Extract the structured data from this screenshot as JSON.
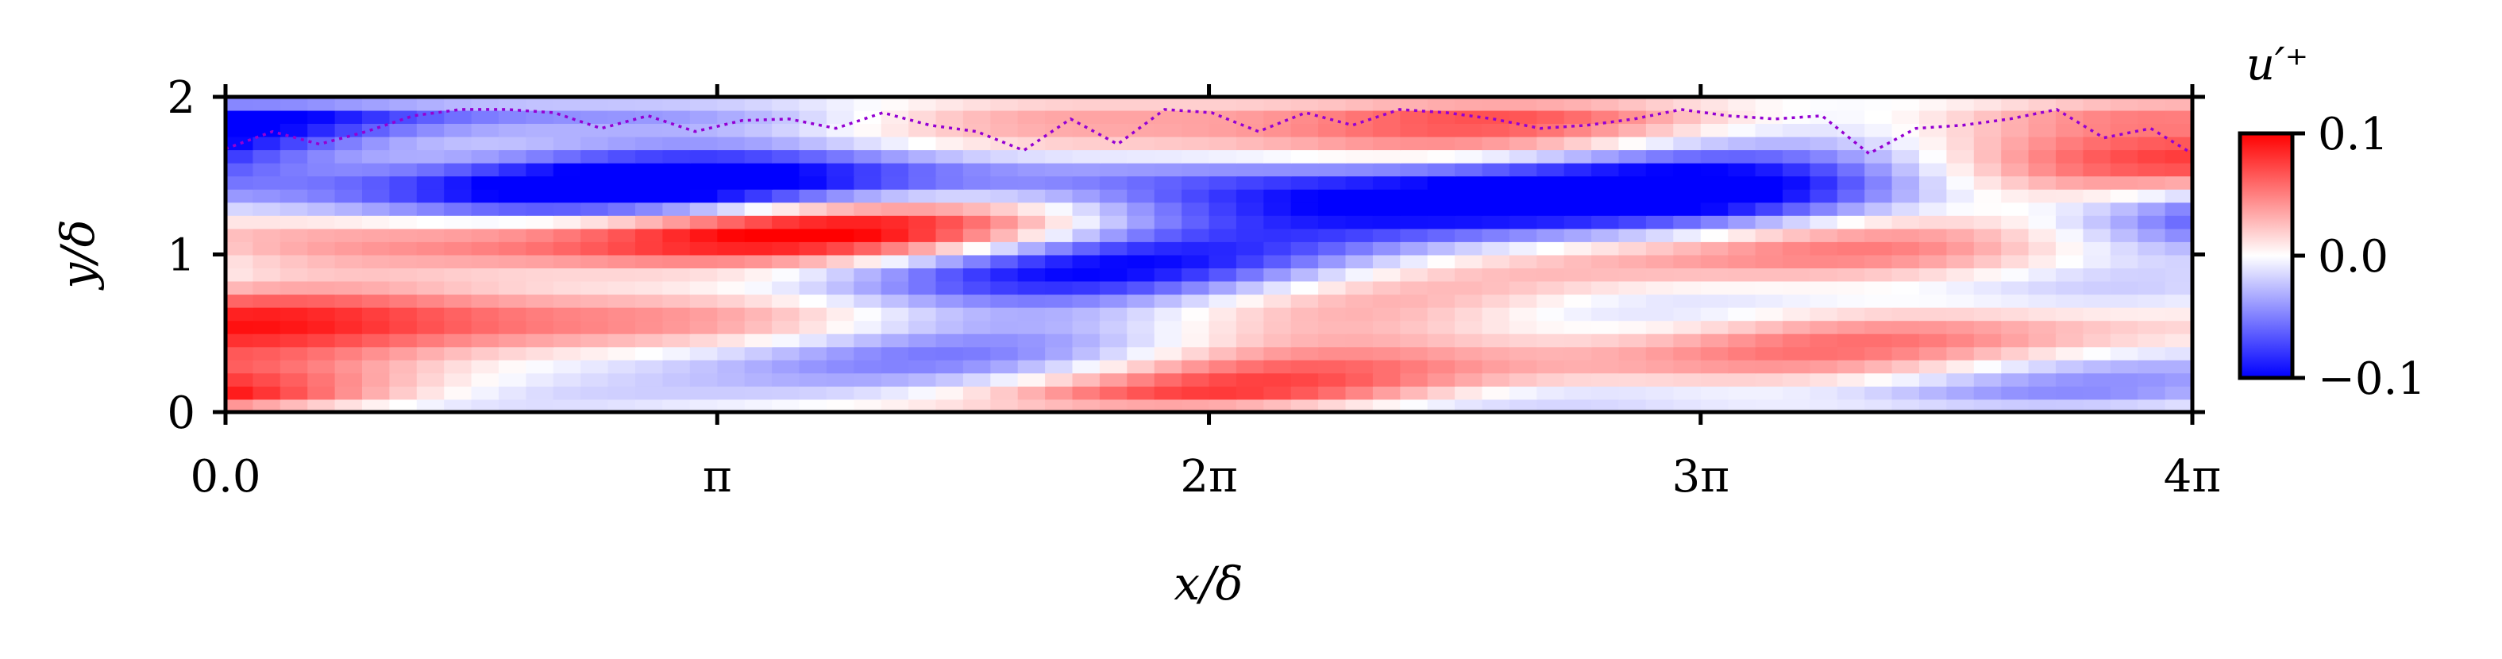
{
  "chart_data": {
    "type": "heatmap",
    "title": "",
    "xlabel": "x/δ",
    "ylabel": "y/δ",
    "xlim": [
      0,
      12.566
    ],
    "ylim": [
      0,
      2
    ],
    "x_ticks": [
      {
        "value": 0,
        "label": "0.0"
      },
      {
        "value": 3.1416,
        "label": "π"
      },
      {
        "value": 6.2832,
        "label": "2π"
      },
      {
        "value": 9.4248,
        "label": "3π"
      },
      {
        "value": 12.566,
        "label": "4π"
      }
    ],
    "y_ticks": [
      {
        "value": 0,
        "label": "0"
      },
      {
        "value": 1,
        "label": "1"
      },
      {
        "value": 2,
        "label": "2"
      }
    ],
    "colorbar": {
      "title": "u′⁺",
      "range": [
        -0.1,
        0.1
      ],
      "ticks": [
        {
          "value": 0.1,
          "label": "0.1"
        },
        {
          "value": 0.0,
          "label": "0.0"
        },
        {
          "value": -0.1,
          "label": "−0.1"
        }
      ],
      "colormap": "bwr",
      "colors": {
        "low": "#0000ff",
        "mid": "#ffffff",
        "high": "#ff0000"
      }
    },
    "interface_line": {
      "style": "dotted",
      "color": "#9400d3",
      "x": [
        0,
        0.3,
        0.6,
        0.9,
        1.2,
        1.5,
        1.8,
        2.1,
        2.4,
        2.7,
        3.0,
        3.3,
        3.6,
        3.9,
        4.2,
        4.5,
        4.8,
        5.1,
        5.4,
        5.7,
        6.0,
        6.3,
        6.6,
        6.9,
        7.2,
        7.5,
        7.8,
        8.1,
        8.4,
        8.7,
        9.0,
        9.3,
        9.6,
        9.9,
        10.2,
        10.5,
        10.8,
        11.1,
        11.4,
        11.7,
        12.0,
        12.3,
        12.566
      ],
      "y": [
        1.67,
        1.78,
        1.7,
        1.78,
        1.88,
        1.92,
        1.92,
        1.9,
        1.8,
        1.88,
        1.78,
        1.85,
        1.86,
        1.8,
        1.9,
        1.82,
        1.78,
        1.66,
        1.86,
        1.7,
        1.92,
        1.9,
        1.78,
        1.9,
        1.82,
        1.92,
        1.9,
        1.86,
        1.8,
        1.82,
        1.86,
        1.92,
        1.88,
        1.86,
        1.88,
        1.64,
        1.8,
        1.82,
        1.86,
        1.92,
        1.74,
        1.8,
        1.64
      ]
    },
    "field": {
      "nx": 72,
      "ny": 24,
      "model": "streaks",
      "modes": [
        {
          "amp": 0.07,
          "ky": 3.0,
          "kx": 0.8,
          "phase": 0.0
        },
        {
          "amp": 0.05,
          "ky": 5.0,
          "kx": 1.3,
          "phase": 1.3
        },
        {
          "amp": 0.04,
          "ky": 9.0,
          "kx": 1.1,
          "phase": 2.1
        },
        {
          "amp": 0.03,
          "ky": 2.0,
          "kx": 2.1,
          "phase": 0.7
        },
        {
          "amp": 0.025,
          "ky": 12.0,
          "kx": 0.5,
          "phase": 4.0
        }
      ]
    }
  }
}
